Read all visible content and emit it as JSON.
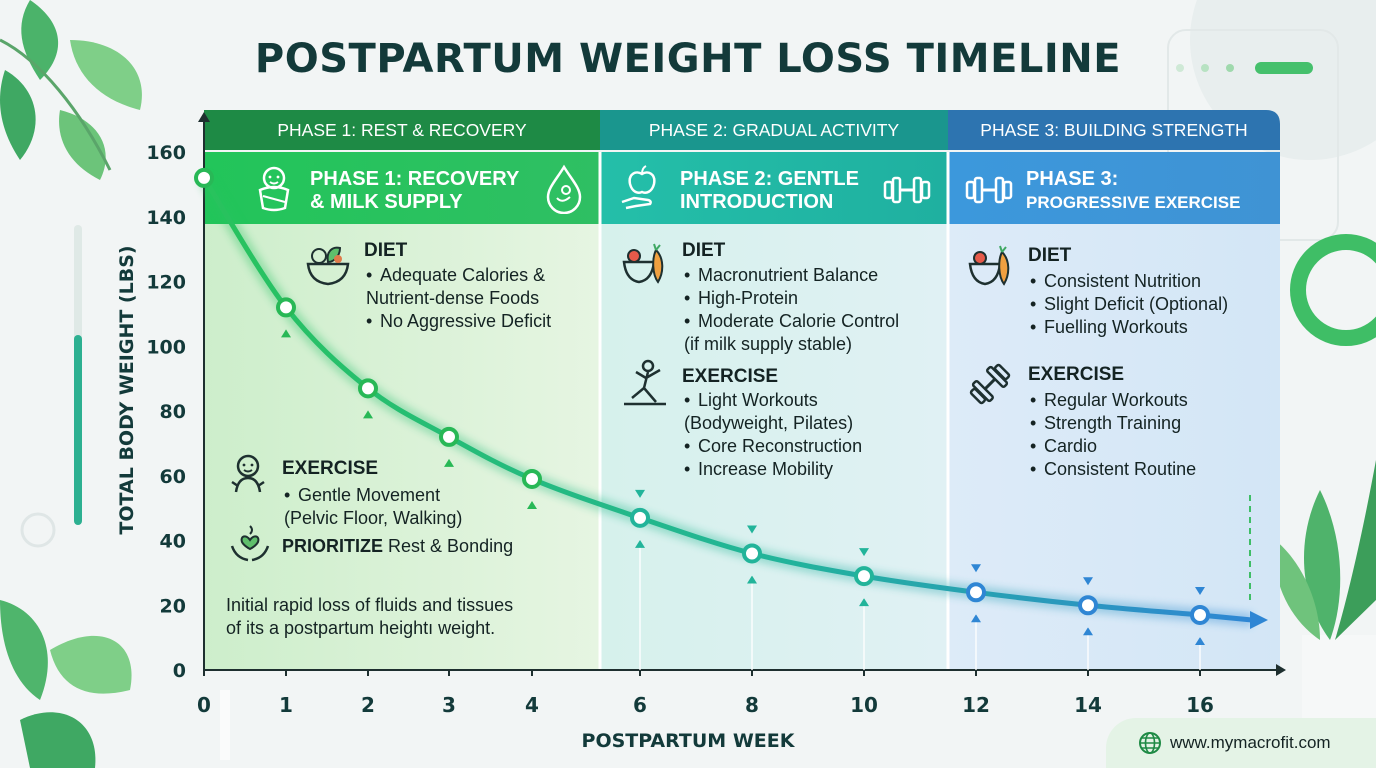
{
  "title": "POSTPARTUM WEIGHT LOSS TIMELINE",
  "colors": {
    "phase1": "#26b34d",
    "phase1_dark": "#1e8a45",
    "phase2": "#20ada5",
    "phase2_dark": "#1a968e",
    "phase3": "#3a92d6",
    "phase3_dark": "#2d74b0",
    "text": "#133a3a"
  },
  "phases": [
    {
      "header": "PHASE 1: REST & RECOVERY",
      "subtitle_line1": "PHASE 1: RECOVERY",
      "subtitle_line2": "& MILK SUPPLY",
      "diet_title": "DIET",
      "diet_items": [
        "Adequate Calories &",
        "Nutrient-dense Foods",
        "No Aggressive Deficit"
      ],
      "exercise_title": "EXERCISE",
      "exercise_items": [
        "Gentle Movement",
        "(Pelvic Floor, Walking)"
      ],
      "priority_bold": "PRIORITIZE",
      "priority_rest": "Rest & Bonding",
      "note_line1": "Initial rapid loss of fluids and tissues",
      "note_line2": "of its a postpartum heightı weight.",
      "icons": [
        "baby-swaddle-icon",
        "milk-drop-icon",
        "salad-bowl-icon",
        "baby-icon",
        "hands-heart-icon"
      ]
    },
    {
      "header": "PHASE 2: GRADUAL ACTIVITY",
      "subtitle_line1": "PHASE 2: GENTLE",
      "subtitle_line2": "INTRODUCTION",
      "diet_title": "DIET",
      "diet_items": [
        "Macronutrient Balance",
        "High-Protein",
        "Moderate Calorie Control",
        "(if milk supply stable)"
      ],
      "exercise_title": "EXERCISE",
      "exercise_items": [
        "Light Workouts",
        "(Bodyweight, Pilates)",
        "Core Reconstruction",
        "Increase Mobility"
      ],
      "icons": [
        "apple-hand-icon",
        "dumbbell-icon",
        "fruit-veg-icon",
        "yoga-icon"
      ]
    },
    {
      "header": "PHASE 3: BUILDING STRENGTH",
      "subtitle_line1": "PHASE 3:",
      "subtitle_line2": "PROGRESSIVE EXERCISE",
      "diet_title": "DIET",
      "diet_items": [
        "Consistent Nutrition",
        "Slight Deficit (Optional)",
        "Fuelling Workouts"
      ],
      "exercise_title": "EXERCISE",
      "exercise_items": [
        "Regular Workouts",
        "Strength Training",
        "Cardio",
        "Consistent Routine"
      ],
      "icons": [
        "dumbbell-icon",
        "fruit-veg-icon",
        "dumbbell-angled-icon"
      ]
    }
  ],
  "footer": {
    "url": "www.mymacrofit.com",
    "icon": "globe-icon"
  },
  "chart_data": {
    "type": "line",
    "title": "POSTPARTUM WEIGHT LOSS TIMELINE",
    "xlabel": "POSTPARTUM WEEK",
    "ylabel": "TOTAL BODY WEIGHT (LBS)",
    "x_ticks": [
      "0",
      "1",
      "2",
      "3",
      "4",
      "6",
      "8",
      "10",
      "12",
      "14",
      "16"
    ],
    "y_ticks": [
      0,
      20,
      40,
      60,
      80,
      100,
      120,
      140,
      160
    ],
    "ylim": [
      0,
      160
    ],
    "series": [
      {
        "x": [
          0,
          1,
          2,
          3,
          4,
          6,
          8,
          10,
          12,
          14,
          16
        ],
        "values": [
          152,
          112,
          87,
          72,
          59,
          47,
          36,
          29,
          24,
          20,
          17
        ]
      }
    ],
    "grid": false,
    "legend": "none"
  }
}
